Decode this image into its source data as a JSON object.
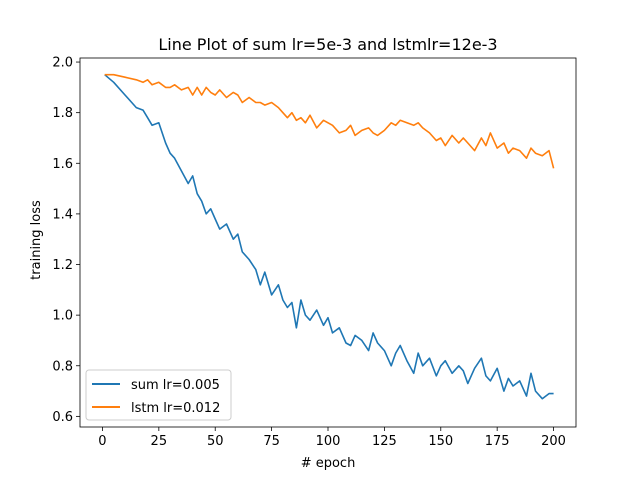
{
  "chart_data": {
    "type": "line",
    "title": "Line Plot of sum lr=5e-3 and lstmlr=12e-3",
    "xlabel": "# epoch",
    "ylabel": "training loss",
    "xlim": [
      -9.95,
      209.95
    ],
    "ylim": [
      0.558,
      2.016
    ],
    "xticks": [
      0,
      25,
      50,
      75,
      100,
      125,
      150,
      175,
      200
    ],
    "yticks": [
      0.6,
      0.8,
      1.0,
      1.2,
      1.4,
      1.6,
      1.8,
      2.0
    ],
    "xtick_labels": [
      "0",
      "25",
      "50",
      "75",
      "100",
      "125",
      "150",
      "175",
      "200"
    ],
    "ytick_labels": [
      "0.6",
      "0.8",
      "1.0",
      "1.2",
      "1.4",
      "1.6",
      "1.8",
      "2.0"
    ],
    "grid": false,
    "legend_position": "lower-left",
    "series": [
      {
        "name": "sum lr=0.005",
        "color": "#1f77b4",
        "x": [
          1,
          5,
          10,
          15,
          18,
          20,
          22,
          25,
          28,
          30,
          32,
          35,
          38,
          40,
          42,
          44,
          46,
          48,
          50,
          52,
          55,
          58,
          60,
          62,
          65,
          68,
          70,
          72,
          75,
          78,
          80,
          82,
          84,
          86,
          88,
          90,
          92,
          95,
          98,
          100,
          102,
          105,
          108,
          110,
          112,
          115,
          118,
          120,
          122,
          125,
          128,
          130,
          132,
          135,
          138,
          140,
          142,
          145,
          148,
          150,
          152,
          155,
          158,
          160,
          162,
          165,
          168,
          170,
          172,
          175,
          178,
          180,
          182,
          185,
          188,
          190,
          192,
          195,
          198,
          200
        ],
        "values": [
          1.95,
          1.92,
          1.87,
          1.82,
          1.81,
          1.78,
          1.75,
          1.76,
          1.68,
          1.64,
          1.62,
          1.57,
          1.52,
          1.55,
          1.48,
          1.45,
          1.4,
          1.42,
          1.38,
          1.34,
          1.36,
          1.3,
          1.32,
          1.25,
          1.22,
          1.18,
          1.12,
          1.17,
          1.08,
          1.12,
          1.06,
          1.03,
          1.05,
          0.95,
          1.06,
          1.0,
          0.98,
          1.02,
          0.96,
          0.99,
          0.93,
          0.95,
          0.89,
          0.88,
          0.92,
          0.9,
          0.86,
          0.93,
          0.89,
          0.86,
          0.8,
          0.85,
          0.88,
          0.82,
          0.77,
          0.85,
          0.8,
          0.83,
          0.76,
          0.8,
          0.82,
          0.77,
          0.8,
          0.78,
          0.73,
          0.79,
          0.83,
          0.76,
          0.74,
          0.79,
          0.7,
          0.75,
          0.72,
          0.74,
          0.68,
          0.77,
          0.7,
          0.67,
          0.69,
          0.69
        ]
      },
      {
        "name": "lstm lr=0.012",
        "color": "#ff7f0e",
        "x": [
          1,
          5,
          10,
          15,
          18,
          20,
          22,
          25,
          28,
          30,
          32,
          35,
          38,
          40,
          42,
          44,
          46,
          48,
          50,
          52,
          55,
          58,
          60,
          62,
          65,
          68,
          70,
          72,
          75,
          78,
          80,
          82,
          84,
          86,
          88,
          90,
          92,
          95,
          98,
          100,
          102,
          105,
          108,
          110,
          112,
          115,
          118,
          120,
          122,
          125,
          128,
          130,
          132,
          135,
          138,
          140,
          142,
          145,
          148,
          150,
          152,
          155,
          158,
          160,
          162,
          165,
          168,
          170,
          172,
          175,
          178,
          180,
          182,
          185,
          188,
          190,
          192,
          195,
          198,
          200
        ],
        "values": [
          1.95,
          1.95,
          1.94,
          1.93,
          1.92,
          1.93,
          1.91,
          1.92,
          1.9,
          1.9,
          1.91,
          1.89,
          1.9,
          1.87,
          1.9,
          1.87,
          1.9,
          1.88,
          1.87,
          1.89,
          1.86,
          1.88,
          1.87,
          1.84,
          1.86,
          1.84,
          1.84,
          1.83,
          1.84,
          1.82,
          1.8,
          1.78,
          1.8,
          1.77,
          1.78,
          1.76,
          1.79,
          1.74,
          1.77,
          1.76,
          1.75,
          1.72,
          1.73,
          1.75,
          1.71,
          1.73,
          1.74,
          1.72,
          1.71,
          1.73,
          1.76,
          1.75,
          1.77,
          1.76,
          1.75,
          1.76,
          1.74,
          1.72,
          1.69,
          1.7,
          1.67,
          1.71,
          1.68,
          1.7,
          1.68,
          1.65,
          1.7,
          1.67,
          1.72,
          1.66,
          1.68,
          1.64,
          1.66,
          1.65,
          1.62,
          1.66,
          1.64,
          1.63,
          1.65,
          1.58
        ]
      }
    ]
  }
}
